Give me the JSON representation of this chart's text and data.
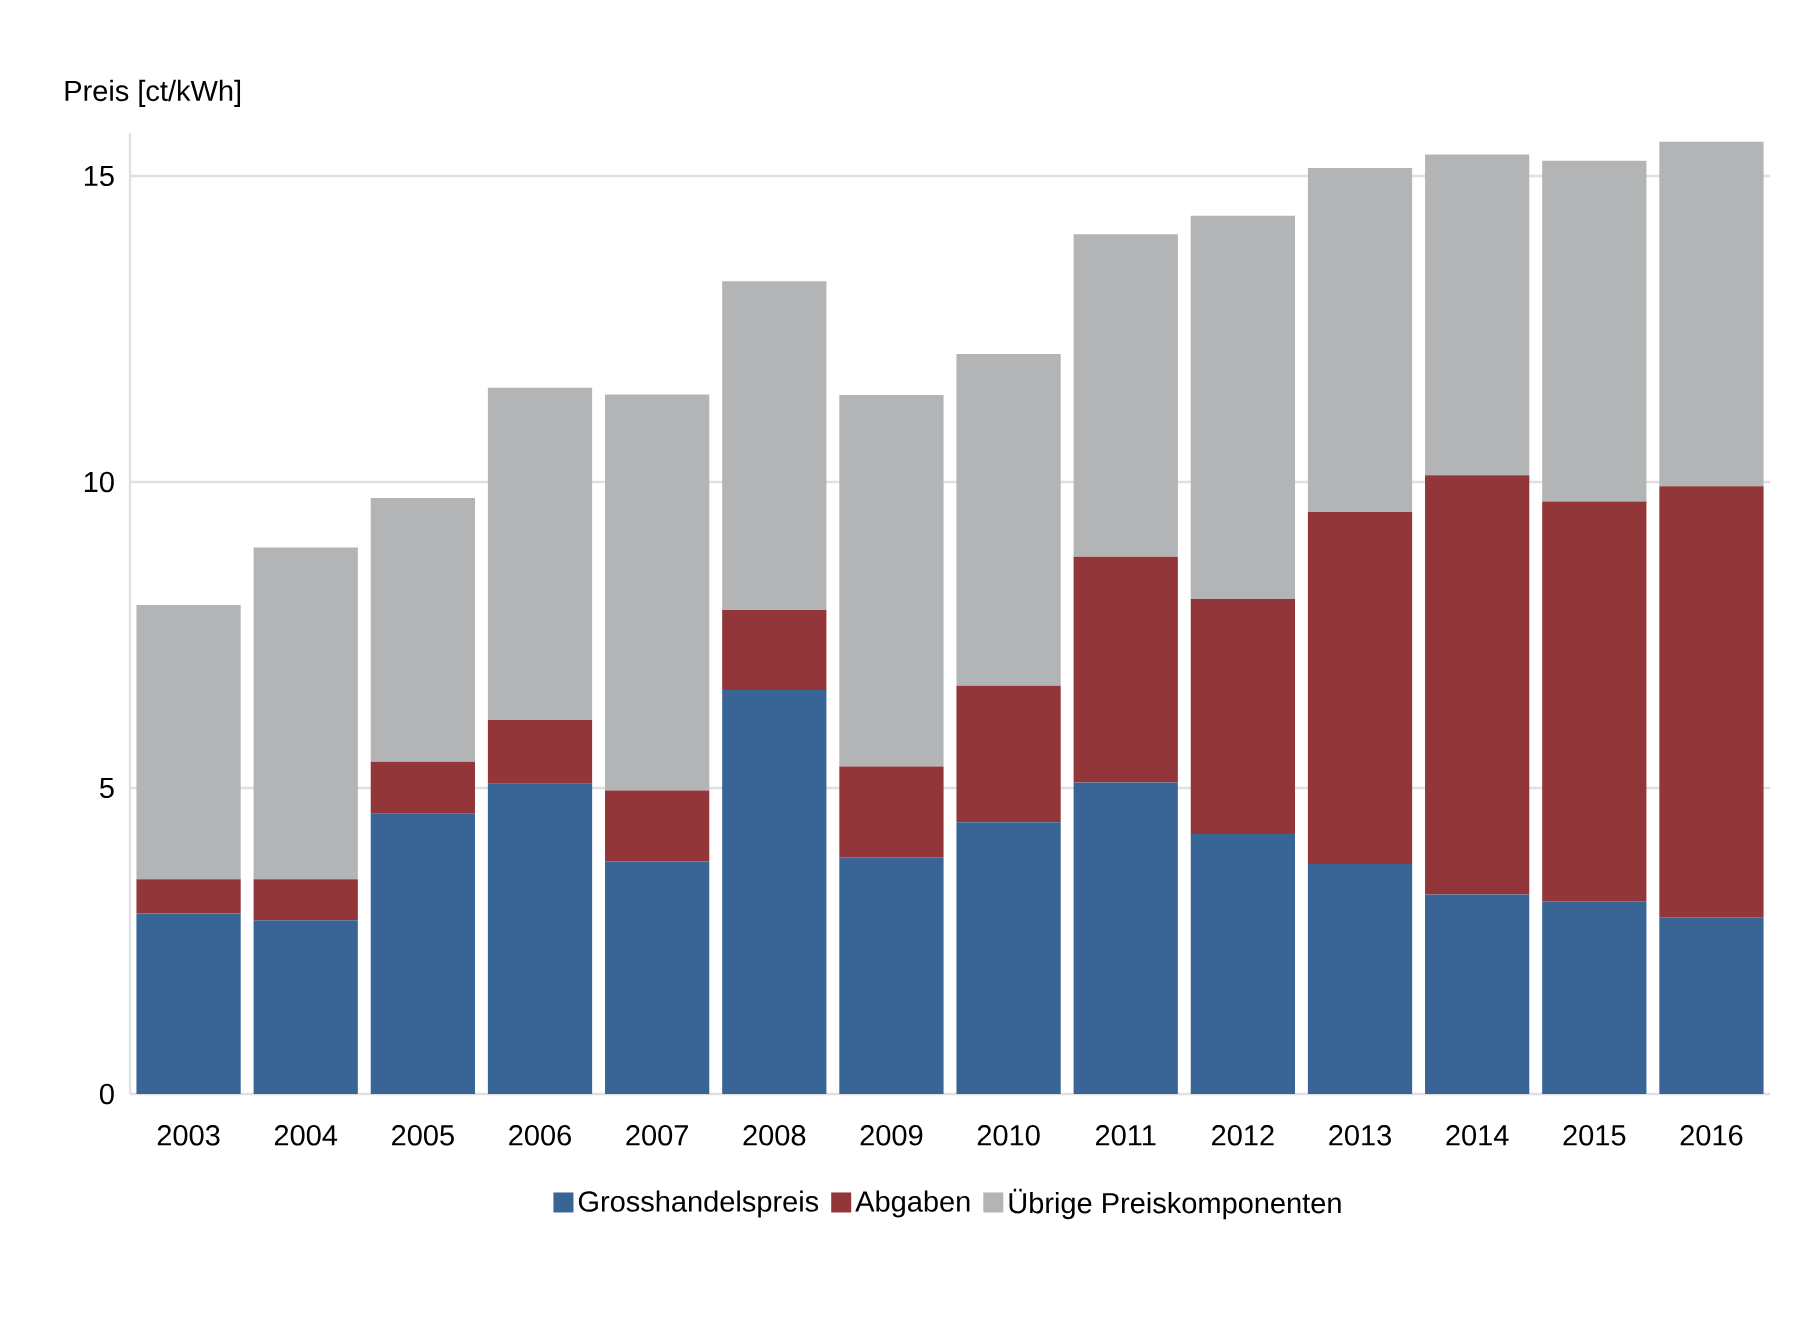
{
  "chart_data": {
    "type": "bar",
    "stacked": true,
    "ylabel": "Preis [ct/kWh]",
    "categories": [
      "2003",
      "2004",
      "2005",
      "2006",
      "2007",
      "2008",
      "2009",
      "2010",
      "2011",
      "2012",
      "2013",
      "2014",
      "2015",
      "2016"
    ],
    "series": [
      {
        "name": "Grosshandelspreis",
        "color": "#386595",
        "values": [
          2.95,
          2.84,
          4.58,
          5.07,
          3.8,
          6.6,
          3.87,
          4.44,
          5.09,
          4.25,
          3.76,
          3.26,
          3.15,
          2.89
        ]
      },
      {
        "name": "Abgaben",
        "color": "#923639",
        "values": [
          0.56,
          0.67,
          0.85,
          1.04,
          1.16,
          1.31,
          1.48,
          2.23,
          3.69,
          3.84,
          5.75,
          6.85,
          6.53,
          7.04
        ]
      },
      {
        "name": "Übrige Preiskomponenten",
        "color": "#b3b4b6",
        "values": [
          4.48,
          5.42,
          4.31,
          5.43,
          6.47,
          5.37,
          6.07,
          5.42,
          5.27,
          6.26,
          5.62,
          5.24,
          5.57,
          5.63
        ]
      }
    ],
    "ylim": [
      0,
      15.7
    ],
    "yticks": [
      0,
      5,
      10,
      15
    ],
    "grid": "y",
    "legend": "bottom"
  }
}
